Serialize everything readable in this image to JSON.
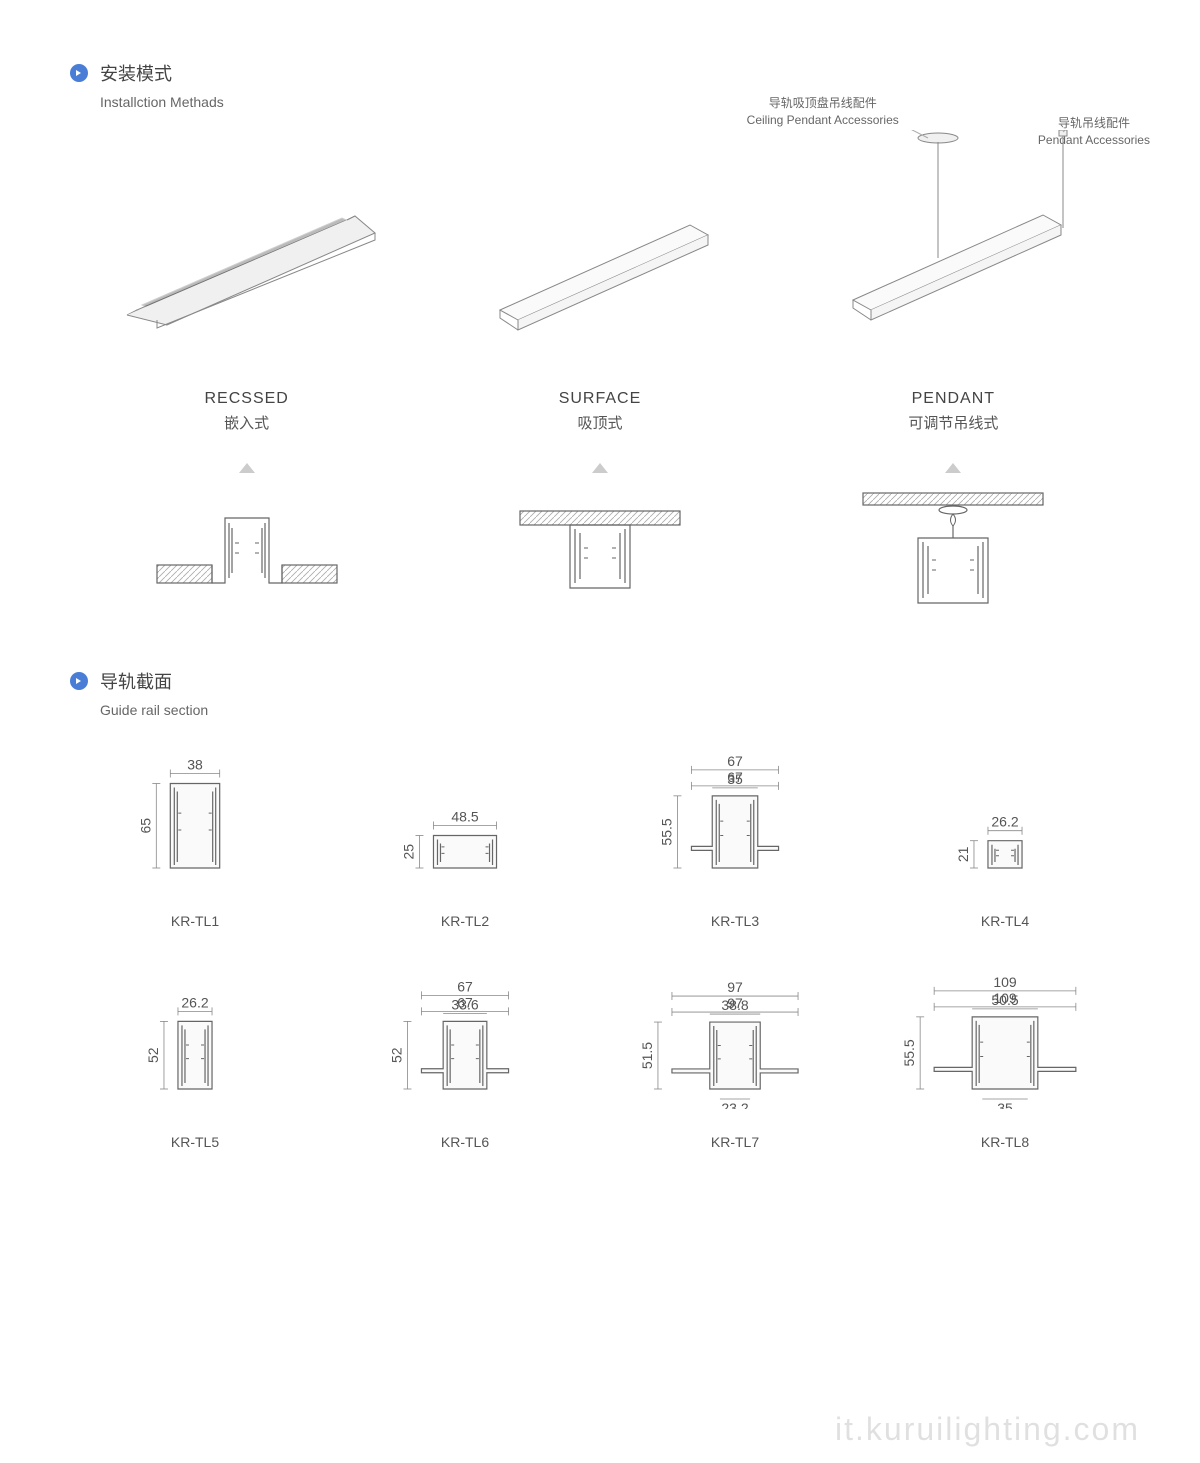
{
  "colors": {
    "bullet": "#4a7dd6",
    "line": "#888888",
    "line_dark": "#555555",
    "text": "#555555",
    "text_light": "#999999",
    "hatch": "#aaaaaa",
    "bg": "#ffffff"
  },
  "section1": {
    "title_cn": "安装模式",
    "title_en": "Installction Methads",
    "accessories": {
      "ceiling": {
        "cn": "导轨吸顶盘吊线配件",
        "en": "Ceiling Pendant Accessories"
      },
      "pendant": {
        "cn": "导轨吊线配件",
        "en": "Pendant Accessories"
      }
    },
    "methods": [
      {
        "en": "RECSSED",
        "cn": "嵌入式",
        "type": "recessed"
      },
      {
        "en": "SURFACE",
        "cn": "吸顶式",
        "type": "surface"
      },
      {
        "en": "PENDANT",
        "cn": "可调节吊线式",
        "type": "pendant"
      }
    ]
  },
  "section2": {
    "title_cn": "导轨截面",
    "title_en": "Guide rail section",
    "rails": [
      {
        "id": "KR-TL1",
        "width": "38",
        "height": "65",
        "w2": null,
        "h2": null,
        "profile_w": 38,
        "profile_h": 65
      },
      {
        "id": "KR-TL2",
        "width": "48.5",
        "height": "25",
        "w2": null,
        "h2": null,
        "profile_w": 48.5,
        "profile_h": 25
      },
      {
        "id": "KR-TL3",
        "width": "67",
        "height": "55.5",
        "w2": "35",
        "h2": null,
        "profile_w": 67,
        "profile_h": 55.5
      },
      {
        "id": "KR-TL4",
        "width": "26.2",
        "height": "21",
        "w2": null,
        "h2": null,
        "profile_w": 26.2,
        "profile_h": 21
      },
      {
        "id": "KR-TL5",
        "width": "26.2",
        "height": "52",
        "w2": null,
        "h2": null,
        "profile_w": 26.2,
        "profile_h": 52
      },
      {
        "id": "KR-TL6",
        "width": "67",
        "height": "52",
        "w2": "33.6",
        "h2": null,
        "profile_w": 67,
        "profile_h": 52
      },
      {
        "id": "KR-TL7",
        "width": "97",
        "height": "51.5",
        "w2": "38.8",
        "h2": "23.2",
        "profile_w": 97,
        "profile_h": 51.5
      },
      {
        "id": "KR-TL8",
        "width": "109",
        "height": "55.5",
        "w2": "50.5",
        "h2": "35",
        "profile_w": 109,
        "profile_h": 55.5
      }
    ]
  },
  "watermark": "it.kuruilighting.com"
}
